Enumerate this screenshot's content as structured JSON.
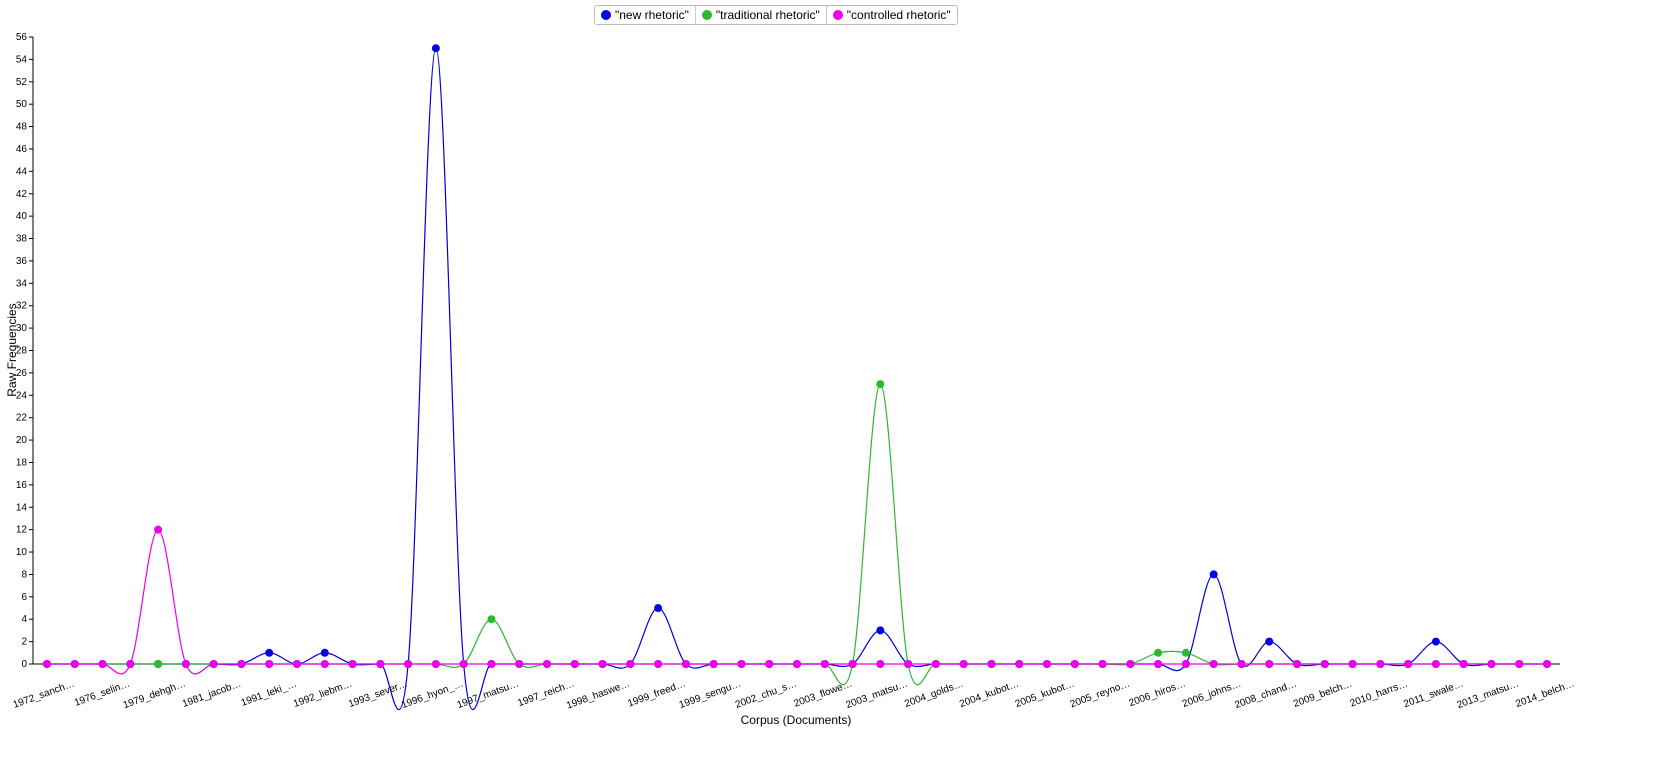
{
  "chart_data": {
    "type": "line",
    "xlabel": "Corpus (Documents)",
    "ylabel": "Raw Frequencies",
    "categories": [
      "1972_sanch…",
      null,
      "1976_selin…",
      null,
      "1979_dehgh…",
      null,
      "1981_jacob…",
      null,
      "1991_leki_…",
      null,
      "1992_liebm…",
      null,
      "1993_sever…",
      null,
      "1996_hyon_…",
      null,
      "1997_matsu…",
      null,
      "1997_reich…",
      null,
      "1998_haswe…",
      null,
      "1999_freed…",
      null,
      "1999_sengu…",
      null,
      "2002_chu_s…",
      null,
      "2003_flowe…",
      null,
      "2003_matsu…",
      null,
      "2004_golds…",
      null,
      "2004_kubot…",
      null,
      "2005_kubot…",
      null,
      "2005_reyno…",
      null,
      "2006_hiros…",
      null,
      "2006_johns…",
      null,
      "2008_chand…",
      null,
      "2009_belch…",
      null,
      "2010_harrs…",
      null,
      "2011_swale…",
      null,
      "2013_matsu…",
      null,
      "2014_belch…"
    ],
    "series": [
      {
        "name": "\"new rhetoric\"",
        "color": "#0000e0",
        "values": [
          0,
          0,
          0,
          0,
          0,
          0,
          0,
          0,
          1,
          0,
          1,
          0,
          0,
          0,
          55,
          0,
          0,
          0,
          0,
          0,
          0,
          0,
          5,
          0,
          0,
          0,
          0,
          0,
          0,
          0,
          3,
          0,
          0,
          0,
          0,
          0,
          0,
          0,
          0,
          0,
          0,
          0,
          8,
          0,
          2,
          0,
          0,
          0,
          0,
          0,
          2,
          0,
          0,
          0,
          0
        ]
      },
      {
        "name": "\"traditional rhetoric\"",
        "color": "#2db82d",
        "values": [
          0,
          0,
          0,
          0,
          0,
          0,
          0,
          0,
          0,
          0,
          0,
          0,
          0,
          0,
          0,
          0,
          4,
          0,
          0,
          0,
          0,
          0,
          0,
          0,
          0,
          0,
          0,
          0,
          0,
          0,
          25,
          0,
          0,
          0,
          0,
          0,
          0,
          0,
          0,
          0,
          1,
          1,
          0,
          0,
          0,
          0,
          0,
          0,
          0,
          0,
          0,
          0,
          0,
          0,
          0
        ]
      },
      {
        "name": "\"controlled rhetoric\"",
        "color": "#ee00ee",
        "values": [
          0,
          0,
          0,
          0,
          12,
          0,
          0,
          0,
          0,
          0,
          0,
          0,
          0,
          0,
          0,
          0,
          0,
          0,
          0,
          0,
          0,
          0,
          0,
          0,
          0,
          0,
          0,
          0,
          0,
          0,
          0,
          0,
          0,
          0,
          0,
          0,
          0,
          0,
          0,
          0,
          0,
          0,
          0,
          0,
          0,
          0,
          0,
          0,
          0,
          0,
          0,
          0,
          0,
          0,
          0
        ]
      }
    ],
    "ylim": [
      0,
      56
    ],
    "yticks": [
      0,
      2,
      4,
      6,
      8,
      10,
      12,
      14,
      16,
      18,
      20,
      22,
      24,
      26,
      28,
      30,
      32,
      34,
      36,
      38,
      40,
      42,
      44,
      46,
      48,
      50,
      52,
      54,
      56
    ]
  }
}
